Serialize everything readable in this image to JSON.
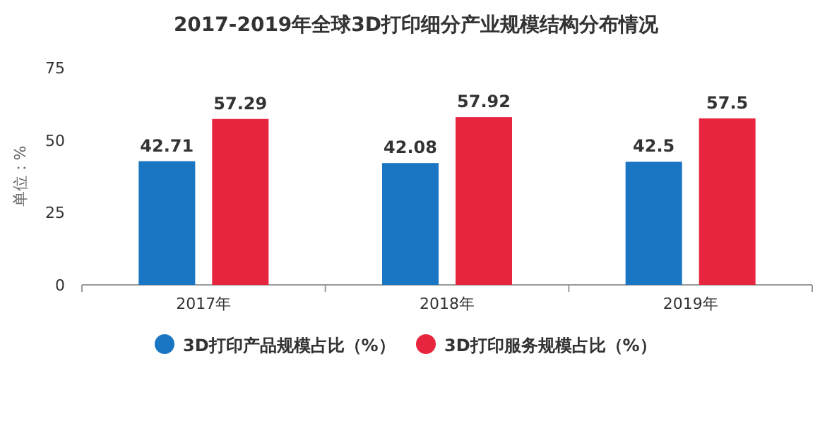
{
  "chart_data": {
    "type": "bar",
    "title": "2017-2019年全球3D打印细分产业规模结构分布情况",
    "ylabel": "单位：%",
    "categories": [
      "2017年",
      "2018年",
      "2019年"
    ],
    "series": [
      {
        "name": "3D打印产品规模占比（%）",
        "color": "#1a75c2",
        "values": [
          42.71,
          42.08,
          42.5
        ]
      },
      {
        "name": "3D打印服务规模占比（%）",
        "color": "#e8253f",
        "values": [
          57.29,
          57.92,
          57.5
        ]
      }
    ],
    "ylim": [
      0,
      75
    ],
    "yticks": [
      0,
      25,
      50,
      75
    ],
    "data_labels": true,
    "legend": "bottom",
    "grid": false
  }
}
